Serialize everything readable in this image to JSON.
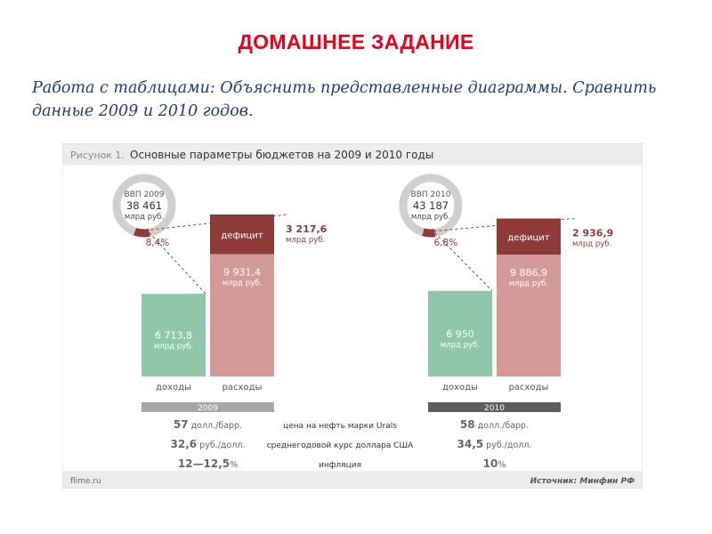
{
  "page": {
    "title": "ДОМАШНЕЕ ЗАДАНИЕ",
    "task_line1": "Работа с таблицами: Объяснить представленные диаграммы. Сравнить",
    "task_line2": "данные 2009 и 2010 годов."
  },
  "colors": {
    "income": "#8fc7a8",
    "expense": "#d49a97",
    "deficit": "#8e3a39",
    "gdp_ring": "#cfcfcf",
    "year_2009": "#a6a6a6",
    "year_2010": "#5e5e5e",
    "share_text": "#8e3a39"
  },
  "figure": {
    "label": "Рисунок 1.",
    "title": "Основные параметры бюджетов на 2009 и 2010 годы",
    "footer_left": "flime.ru",
    "footer_right": "Источник: Минфин РФ"
  },
  "chart_data": {
    "type": "bar",
    "title": "Основные параметры бюджетов на 2009 и 2010 годы",
    "unit": "млрд руб.",
    "categories": [
      "доходы",
      "расходы"
    ],
    "years": [
      {
        "year": "2009",
        "gdp_label": "ВВП 2009",
        "gdp_value": 38461,
        "gdp_value_label": "38 461",
        "gdp_unit": "млрд руб.",
        "deficit_share_gdp": 8.4,
        "deficit_share_label": "8,4%",
        "income": 6713.8,
        "income_label": "6 713,8",
        "expense": 9931.4,
        "expense_label": "9 931,4",
        "deficit": 3217.6,
        "deficit_label": "3 217,6",
        "deficit_unit": "млрд руб.",
        "income_unit": "млрд руб.",
        "expense_unit": "млрд руб.",
        "deficit_bar_label": "дефицит"
      },
      {
        "year": "2010",
        "gdp_label": "ВВП 2010",
        "gdp_value": 43187,
        "gdp_value_label": "43 187",
        "gdp_unit": "млрд руб.",
        "deficit_share_gdp": 6.8,
        "deficit_share_label": "6,8%",
        "income": 6950,
        "income_label": "6 950",
        "expense": 9886.9,
        "expense_label": "9 886,9",
        "deficit": 2936.9,
        "deficit_label": "2 936,9",
        "deficit_unit": "млрд руб.",
        "income_unit": "млрд руб.",
        "expense_unit": "млрд руб.",
        "deficit_bar_label": "дефицит"
      }
    ],
    "table": {
      "rows": [
        {
          "label": "цена на нефть марки Urals",
          "v2009": "57",
          "u2009": "долл./барр.",
          "v2010": "58",
          "u2010": "долл./барр."
        },
        {
          "label": "среднегодовой курс доллара США",
          "v2009": "32,6",
          "u2009": "руб./долл.",
          "v2010": "34,5",
          "u2010": "руб./долл."
        },
        {
          "label": "инфляция",
          "v2009": "12—12,5",
          "u2009": "%",
          "v2010": "10",
          "u2010": "%"
        }
      ]
    }
  }
}
